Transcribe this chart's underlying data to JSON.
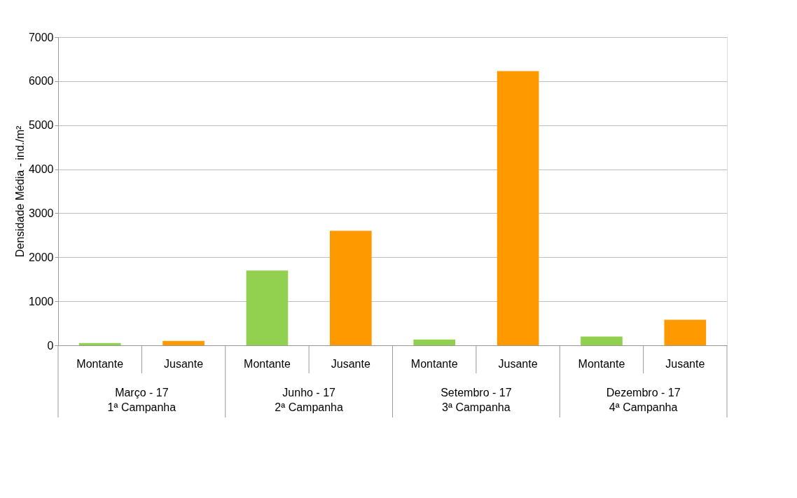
{
  "chart_data": {
    "type": "bar",
    "ylabel": "Densidade Média - ind./m²",
    "categories": [
      "Montante",
      "Jusante",
      "Montante",
      "Jusante",
      "Montante",
      "Jusante",
      "Montante",
      "Jusante"
    ],
    "values": [
      50,
      100,
      1700,
      2600,
      130,
      6230,
      200,
      580
    ],
    "colors": [
      "#92d050",
      "#ff9900",
      "#92d050",
      "#ff9900",
      "#92d050",
      "#ff9900",
      "#92d050",
      "#ff9900"
    ],
    "ylim": [
      0,
      7000
    ],
    "yticks": [
      0,
      1000,
      2000,
      3000,
      4000,
      5000,
      6000,
      7000
    ],
    "grid": "y",
    "annotations": [
      "Março - 17\n1ª Campanha",
      "Junho - 17\n2ª Campanha",
      "Setembro - 17\n3ª Campanha",
      "Dezembro - 17\n4ª Campanha"
    ]
  }
}
